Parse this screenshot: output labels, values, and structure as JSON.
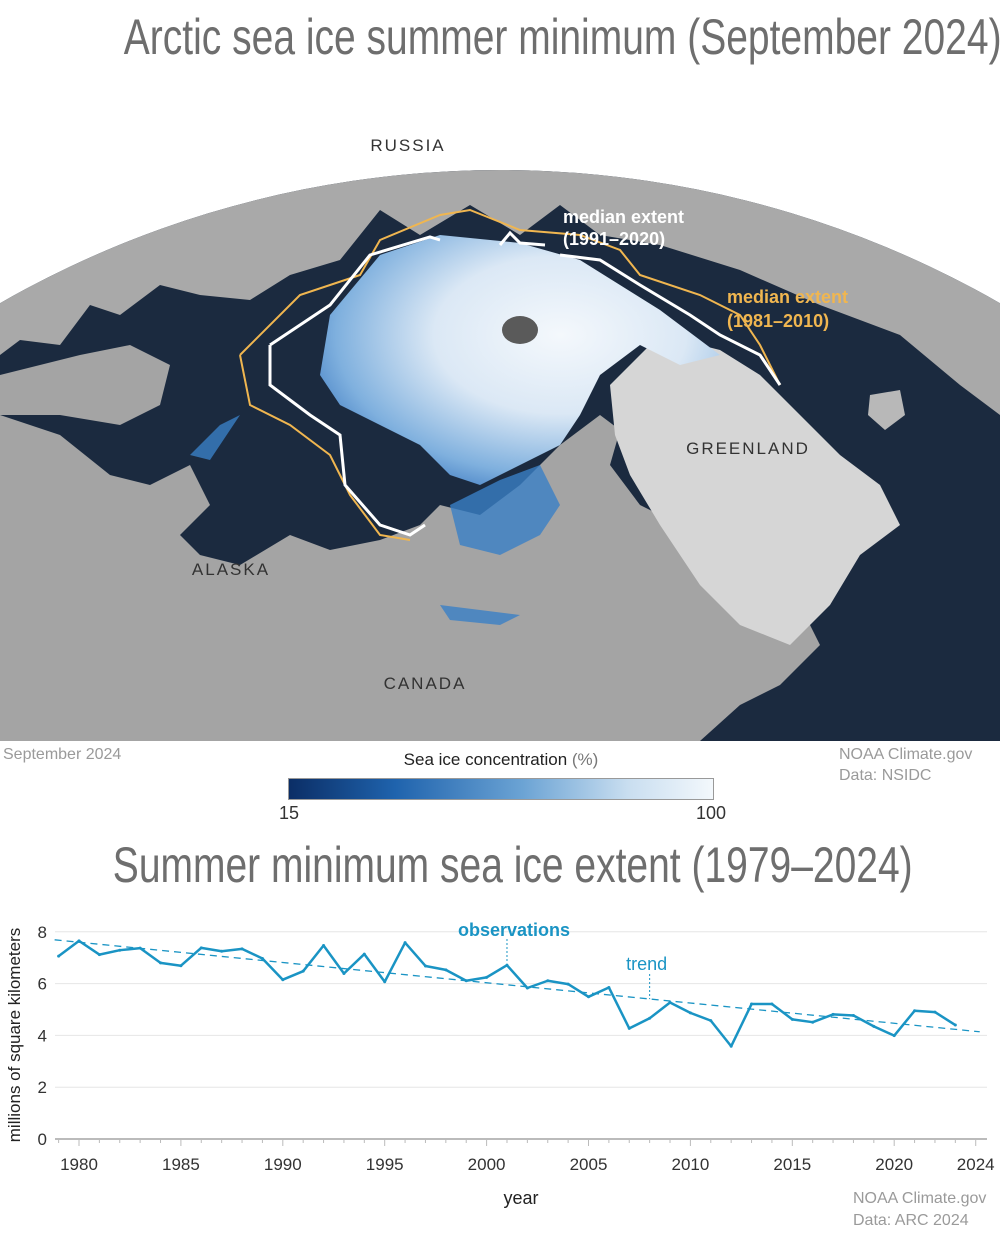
{
  "map": {
    "title": "Arctic sea ice summer minimum (September 2024)",
    "labels": {
      "russia": "RUSSIA",
      "greenland": "GREENLAND",
      "alaska": "ALASKA",
      "canada": "CANADA"
    },
    "median_1991_2020": {
      "line1": "median extent",
      "line2": "(1991–2020)",
      "color": "#ffffff"
    },
    "median_1981_2010": {
      "line1": "median extent",
      "line2": "(1981–2010)",
      "color": "#f0b650"
    },
    "date_label": "September 2024",
    "credit_line1": "NOAA Climate.gov",
    "credit_line2": "Data: NSIDC",
    "legend": {
      "title": "Sea ice concentration",
      "unit": "(%)",
      "min": "15",
      "max": "100",
      "color_low": "#0b2e66",
      "color_high": "#f3f8fc"
    },
    "colors": {
      "ocean": "#1b2a3f",
      "land": "#a7a7a7",
      "greenland": "#d6d6d6"
    }
  },
  "chart_data": {
    "type": "line",
    "title": "Summer minimum sea ice extent (1979–2024)",
    "xlabel": "year",
    "ylabel": "millions of square kilometers",
    "xlim": [
      1979,
      2024
    ],
    "ylim": [
      0,
      8
    ],
    "grid": true,
    "x_ticks": [
      "1980",
      "1985",
      "1990",
      "1995",
      "2000",
      "2005",
      "2010",
      "2015",
      "2020",
      "2024"
    ],
    "y_ticks": [
      "0",
      "2",
      "4",
      "6",
      "8"
    ],
    "line_color": "#1a94c4",
    "series": [
      {
        "name": "observations",
        "x": [
          1979,
          1980,
          1981,
          1982,
          1983,
          1984,
          1985,
          1986,
          1987,
          1988,
          1989,
          1990,
          1991,
          1992,
          1993,
          1994,
          1995,
          1996,
          1997,
          1998,
          1999,
          2000,
          2001,
          2002,
          2003,
          2004,
          2005,
          2006,
          2007,
          2008,
          2009,
          2010,
          2011,
          2012,
          2013,
          2014,
          2015,
          2016,
          2017,
          2018,
          2019,
          2020,
          2021,
          2022,
          2023
        ],
        "values": [
          7.06,
          7.65,
          7.12,
          7.29,
          7.37,
          6.8,
          6.69,
          7.38,
          7.25,
          7.34,
          6.97,
          6.15,
          6.48,
          7.47,
          6.39,
          7.14,
          6.07,
          7.58,
          6.68,
          6.53,
          6.11,
          6.24,
          6.71,
          5.83,
          6.11,
          5.98,
          5.49,
          5.85,
          4.27,
          4.66,
          5.27,
          4.87,
          4.57,
          3.58,
          5.21,
          5.21,
          4.62,
          4.51,
          4.81,
          4.77,
          4.35,
          3.99,
          4.95,
          4.9,
          4.4
        ]
      },
      {
        "name": "trend",
        "style": "dashed",
        "x": [
          1979,
          2024
        ],
        "values": [
          7.69,
          4.14
        ]
      }
    ],
    "annotations": [
      {
        "text": "observations",
        "x": 2001
      },
      {
        "text": "trend",
        "x": 2008
      }
    ],
    "credit_line1": "NOAA Climate.gov",
    "credit_line2": "Data: ARC 2024"
  }
}
